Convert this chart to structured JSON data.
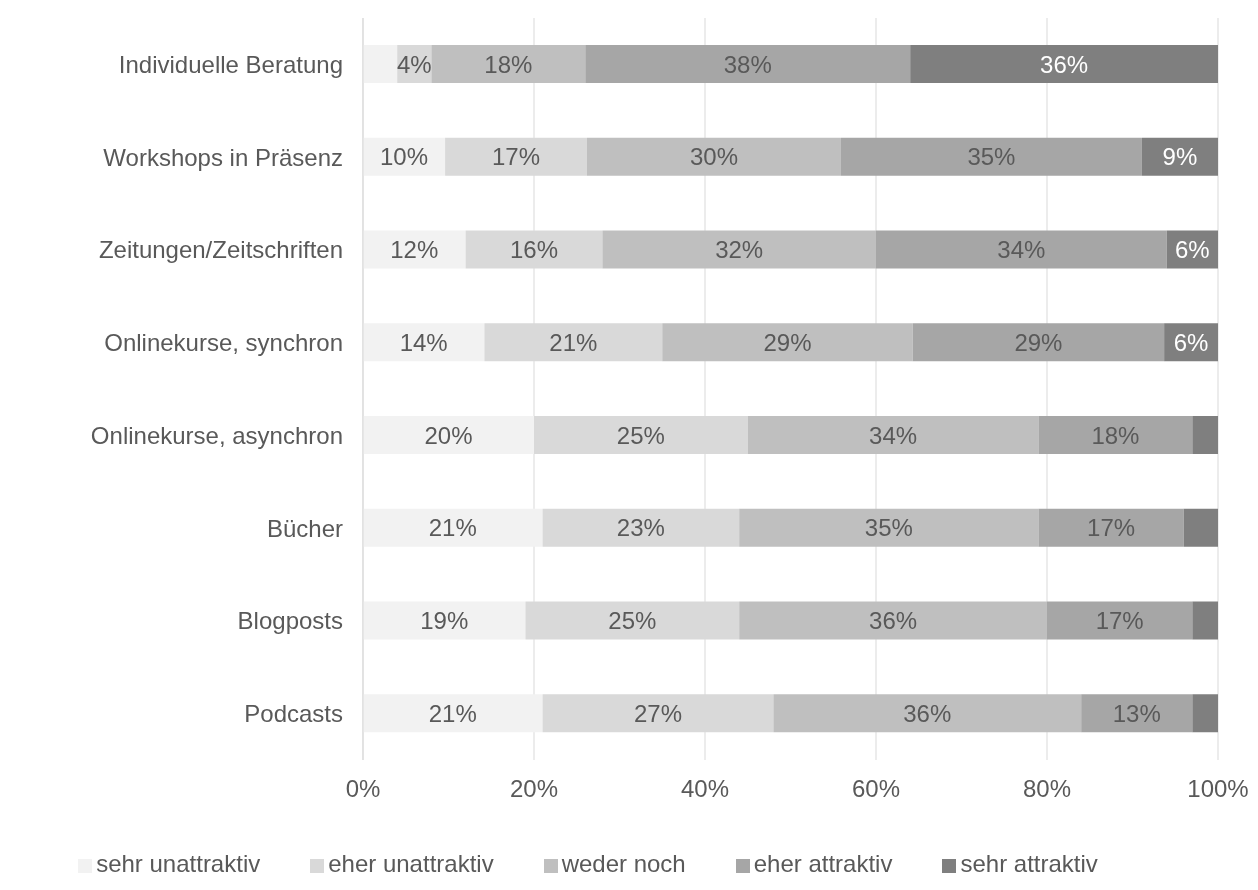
{
  "chart_data": {
    "type": "bar",
    "orientation": "horizontal",
    "stacked": true,
    "categories": [
      "Individuelle Beratung",
      "Workshops in Präsenz",
      "Zeitungen/Zeitschriften",
      "Onlinekurse, synchron",
      "Onlinekurse, asynchron",
      "Bücher",
      "Blogposts",
      "Podcasts"
    ],
    "series": [
      {
        "name": "sehr unattraktiv",
        "color": "#f2f2f2",
        "values": [
          4,
          9.6,
          12,
          14.2,
          20,
          21,
          19,
          21
        ],
        "value_labels": [
          null,
          "10%",
          "12%",
          "14%",
          "20%",
          "21%",
          "19%",
          "21%"
        ]
      },
      {
        "name": "eher unattraktiv",
        "color": "#d9d9d9",
        "values": [
          4,
          16.6,
          16,
          20.8,
          25,
          23,
          25,
          27
        ],
        "value_labels": [
          "4%",
          "17%",
          "16%",
          "21%",
          "25%",
          "23%",
          "25%",
          "27%"
        ]
      },
      {
        "name": "weder noch",
        "color": "#bfbfbf",
        "values": [
          18,
          29.7,
          32,
          29.3,
          34,
          35,
          36,
          36
        ],
        "value_labels": [
          "18%",
          "30%",
          "32%",
          "29%",
          "34%",
          "35%",
          "36%",
          "36%"
        ]
      },
      {
        "name": "eher attraktiv",
        "color": "#a6a6a6",
        "values": [
          38,
          35.2,
          34,
          29.4,
          18,
          17,
          17,
          13
        ],
        "value_labels": [
          "38%",
          "35%",
          "34%",
          "29%",
          "18%",
          "17%",
          "17%",
          "13%"
        ]
      },
      {
        "name": "sehr attraktiv",
        "color": "#7f7f7f",
        "values": [
          36,
          8.9,
          6,
          6.3,
          3,
          4,
          3,
          3
        ],
        "value_labels": [
          "36%",
          "9%",
          "6%",
          "6%",
          null,
          null,
          null,
          null
        ]
      }
    ],
    "xlim": [
      0,
      100
    ],
    "xticks": [
      {
        "value": 0,
        "label": "0%"
      },
      {
        "value": 20,
        "label": "20%"
      },
      {
        "value": 40,
        "label": "40%"
      },
      {
        "value": 60,
        "label": "60%"
      },
      {
        "value": 80,
        "label": "80%"
      },
      {
        "value": 100,
        "label": "100%"
      }
    ],
    "grid": "x",
    "legend": "bottom"
  }
}
